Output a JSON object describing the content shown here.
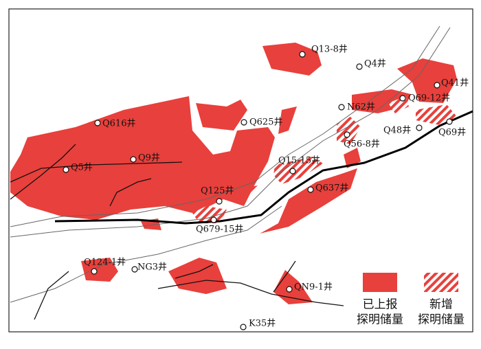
{
  "wells": [
    "Q13-8井",
    "Q4井",
    "Q41井",
    "Q69-12井",
    "N62井",
    "Q48井",
    "Q69井",
    "Q616井",
    "Q625井",
    "Q56-8井",
    "Q9井",
    "Q5井",
    "Q15-15井",
    "Q637井",
    "Q125井",
    "Q679-15井",
    "Q124-1井",
    "NG3井",
    "QN9-1井",
    "K35井"
  ],
  "legend": {
    "reported": [
      "已上报",
      "探明储量"
    ],
    "new": [
      "新增",
      "探明储量"
    ]
  }
}
